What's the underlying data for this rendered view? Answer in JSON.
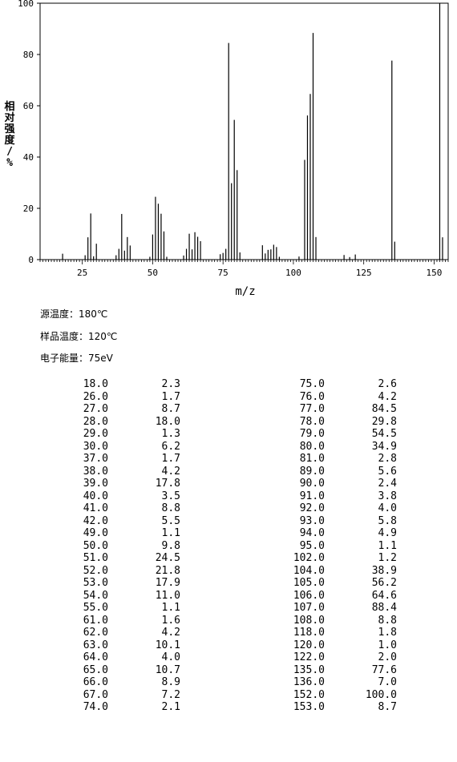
{
  "chart_data": {
    "type": "bar",
    "xlabel": "m/z",
    "ylabel": "相对强度/%",
    "xlim": [
      10,
      155
    ],
    "ylim": [
      0,
      100
    ],
    "xticks": [
      25,
      50,
      75,
      100,
      125,
      150
    ],
    "yticks": [
      0,
      20,
      40,
      60,
      80,
      100
    ],
    "grid": false,
    "x": [
      18,
      26,
      27,
      28,
      29,
      30,
      37,
      38,
      39,
      40,
      41,
      42,
      49,
      50,
      51,
      52,
      53,
      54,
      55,
      61,
      62,
      63,
      64,
      65,
      66,
      67,
      74,
      75,
      76,
      77,
      78,
      79,
      80,
      81,
      89,
      90,
      91,
      92,
      93,
      94,
      95,
      102,
      104,
      105,
      106,
      107,
      108,
      118,
      120,
      122,
      135,
      136,
      152,
      153
    ],
    "values": [
      2.3,
      1.7,
      8.7,
      18.0,
      1.3,
      6.2,
      1.7,
      4.2,
      17.8,
      3.5,
      8.8,
      5.5,
      1.1,
      9.8,
      24.5,
      21.8,
      17.9,
      11.0,
      1.1,
      1.6,
      4.2,
      10.1,
      4.0,
      10.7,
      8.9,
      7.2,
      2.1,
      2.6,
      4.2,
      84.5,
      29.8,
      54.5,
      34.9,
      2.8,
      5.6,
      2.4,
      3.8,
      4.0,
      5.8,
      4.9,
      1.1,
      1.2,
      38.9,
      56.2,
      64.6,
      88.4,
      8.8,
      1.8,
      1.0,
      2.0,
      77.6,
      7.0,
      100.0,
      8.7
    ]
  },
  "conditions": {
    "source_temp": "源温度：180℃",
    "sample_temp": "样品温度：120℃",
    "electron_energy": "电子能量：75eV"
  },
  "table": {
    "left": [
      {
        "mz": "18.0",
        "intensity": "2.3"
      },
      {
        "mz": "26.0",
        "intensity": "1.7"
      },
      {
        "mz": "27.0",
        "intensity": "8.7"
      },
      {
        "mz": "28.0",
        "intensity": "18.0"
      },
      {
        "mz": "29.0",
        "intensity": "1.3"
      },
      {
        "mz": "30.0",
        "intensity": "6.2"
      },
      {
        "mz": "37.0",
        "intensity": "1.7"
      },
      {
        "mz": "38.0",
        "intensity": "4.2"
      },
      {
        "mz": "39.0",
        "intensity": "17.8"
      },
      {
        "mz": "40.0",
        "intensity": "3.5"
      },
      {
        "mz": "41.0",
        "intensity": "8.8"
      },
      {
        "mz": "42.0",
        "intensity": "5.5"
      },
      {
        "mz": "49.0",
        "intensity": "1.1"
      },
      {
        "mz": "50.0",
        "intensity": "9.8"
      },
      {
        "mz": "51.0",
        "intensity": "24.5"
      },
      {
        "mz": "52.0",
        "intensity": "21.8"
      },
      {
        "mz": "53.0",
        "intensity": "17.9"
      },
      {
        "mz": "54.0",
        "intensity": "11.0"
      },
      {
        "mz": "55.0",
        "intensity": "1.1"
      },
      {
        "mz": "61.0",
        "intensity": "1.6"
      },
      {
        "mz": "62.0",
        "intensity": "4.2"
      },
      {
        "mz": "63.0",
        "intensity": "10.1"
      },
      {
        "mz": "64.0",
        "intensity": "4.0"
      },
      {
        "mz": "65.0",
        "intensity": "10.7"
      },
      {
        "mz": "66.0",
        "intensity": "8.9"
      },
      {
        "mz": "67.0",
        "intensity": "7.2"
      },
      {
        "mz": "74.0",
        "intensity": "2.1"
      }
    ],
    "right": [
      {
        "mz": "75.0",
        "intensity": "2.6"
      },
      {
        "mz": "76.0",
        "intensity": "4.2"
      },
      {
        "mz": "77.0",
        "intensity": "84.5"
      },
      {
        "mz": "78.0",
        "intensity": "29.8"
      },
      {
        "mz": "79.0",
        "intensity": "54.5"
      },
      {
        "mz": "80.0",
        "intensity": "34.9"
      },
      {
        "mz": "81.0",
        "intensity": "2.8"
      },
      {
        "mz": "89.0",
        "intensity": "5.6"
      },
      {
        "mz": "90.0",
        "intensity": "2.4"
      },
      {
        "mz": "91.0",
        "intensity": "3.8"
      },
      {
        "mz": "92.0",
        "intensity": "4.0"
      },
      {
        "mz": "93.0",
        "intensity": "5.8"
      },
      {
        "mz": "94.0",
        "intensity": "4.9"
      },
      {
        "mz": "95.0",
        "intensity": "1.1"
      },
      {
        "mz": "102.0",
        "intensity": "1.2"
      },
      {
        "mz": "104.0",
        "intensity": "38.9"
      },
      {
        "mz": "105.0",
        "intensity": "56.2"
      },
      {
        "mz": "106.0",
        "intensity": "64.6"
      },
      {
        "mz": "107.0",
        "intensity": "88.4"
      },
      {
        "mz": "108.0",
        "intensity": "8.8"
      },
      {
        "mz": "118.0",
        "intensity": "1.8"
      },
      {
        "mz": "120.0",
        "intensity": "1.0"
      },
      {
        "mz": "122.0",
        "intensity": "2.0"
      },
      {
        "mz": "135.0",
        "intensity": "77.6"
      },
      {
        "mz": "136.0",
        "intensity": "7.0"
      },
      {
        "mz": "152.0",
        "intensity": "100.0"
      },
      {
        "mz": "153.0",
        "intensity": "8.7"
      }
    ]
  }
}
